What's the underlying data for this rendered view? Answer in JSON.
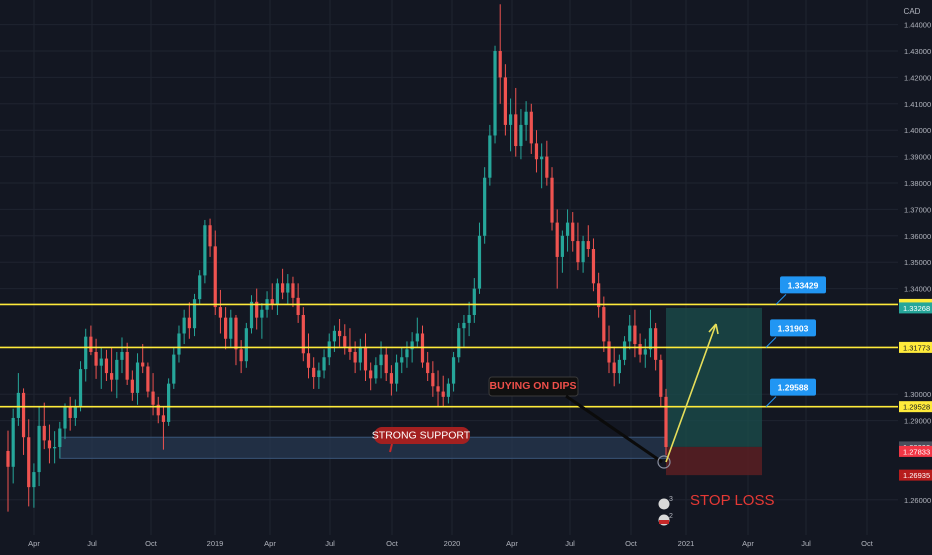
{
  "theme": {
    "background": "#131722",
    "grid": "#1f2430",
    "axis_text": "#b2b5be",
    "bull": "#26a69a",
    "bear": "#ef5350",
    "level_line": "#ffeb3b",
    "callout": "#2196f3",
    "target_zone": "#1a4b4a",
    "stop_zone": "#5a1e22",
    "support_zone": "#2a3c57",
    "arrow": "#e6de5a",
    "stop_text": "#e53935"
  },
  "chart_data": {
    "type": "candlestick",
    "instrument_quote_currency": "CAD",
    "x_tick_labels": [
      "Apr",
      "Jul",
      "Oct",
      "2019",
      "Apr",
      "Jul",
      "Oct",
      "2020",
      "Apr",
      "Jul",
      "Oct",
      "2021",
      "Apr",
      "Jul",
      "Oct"
    ],
    "y_tick_labels": [
      "1.44000",
      "1.43000",
      "1.42000",
      "1.41000",
      "1.40000",
      "1.39000",
      "1.38000",
      "1.37000",
      "1.36000",
      "1.35000",
      "1.34000",
      "1.30000",
      "1.29000",
      "1.26000"
    ],
    "ylim": [
      1.2545,
      1.4477
    ],
    "price_tags": [
      {
        "label": "1.33401",
        "value": 1.33401,
        "style": "yellow"
      },
      {
        "label": "1.33268",
        "value": 1.33268,
        "style": "green"
      },
      {
        "label": "1.31773",
        "value": 1.31773,
        "style": "yellow"
      },
      {
        "label": "1.29528",
        "value": 1.29528,
        "style": "yellow"
      },
      {
        "label": "1.28003",
        "value": 1.28003,
        "style": "grey"
      },
      {
        "label": "1.27833",
        "value": 1.27833,
        "style": "red"
      },
      {
        "label": "1.26935",
        "value": 1.26935,
        "style": "darkred"
      }
    ],
    "horizontal_levels": [
      1.33401,
      1.31773,
      1.29528
    ],
    "level_callouts": [
      "1.33429",
      "1.31903",
      "1.29588"
    ],
    "annotations": {
      "strong_support": "STRONG SUPPORT",
      "buying_on_dips": "BUYING ON DIPS",
      "stop_loss": "STOP LOSS",
      "marker_top": "3",
      "marker_bottom": "2"
    },
    "trade": {
      "entry": 1.28003,
      "target": 1.33268,
      "stop": 1.26935
    },
    "support_zone": [
      1.2757,
      1.2837
    ],
    "candles": [
      [
        1.2785,
        1.2862,
        1.2555,
        1.2725
      ],
      [
        1.2725,
        1.2945,
        1.2662,
        1.291
      ],
      [
        1.291,
        1.308,
        1.288,
        1.3005
      ],
      [
        1.3005,
        1.3022,
        1.277,
        1.2837
      ],
      [
        1.2837,
        1.2905,
        1.2575,
        1.2648
      ],
      [
        1.2648,
        1.2738,
        1.257,
        1.2705
      ],
      [
        1.2705,
        1.295,
        1.2652,
        1.288
      ],
      [
        1.288,
        1.2968,
        1.2792,
        1.2825
      ],
      [
        1.2825,
        1.2885,
        1.2738,
        1.2795
      ],
      [
        1.2795,
        1.286,
        1.2738,
        1.28
      ],
      [
        1.28,
        1.2895,
        1.2757,
        1.287
      ],
      [
        1.287,
        1.2965,
        1.283,
        1.295
      ],
      [
        1.295,
        1.299,
        1.2862,
        1.291
      ],
      [
        1.291,
        1.298,
        1.288,
        1.2955
      ],
      [
        1.2955,
        1.3125,
        1.2935,
        1.3095
      ],
      [
        1.3095,
        1.3248,
        1.3048,
        1.3218
      ],
      [
        1.3218,
        1.326,
        1.3148,
        1.316
      ],
      [
        1.316,
        1.321,
        1.3058,
        1.3108
      ],
      [
        1.3108,
        1.3178,
        1.302,
        1.3135
      ],
      [
        1.3135,
        1.3168,
        1.305,
        1.308
      ],
      [
        1.308,
        1.3175,
        1.301,
        1.3055
      ],
      [
        1.3055,
        1.316,
        1.2985,
        1.313
      ],
      [
        1.313,
        1.3215,
        1.308,
        1.316
      ],
      [
        1.316,
        1.3195,
        1.3035,
        1.3055
      ],
      [
        1.3055,
        1.309,
        1.2975,
        1.3005
      ],
      [
        1.3005,
        1.3155,
        1.296,
        1.312
      ],
      [
        1.312,
        1.319,
        1.308,
        1.3105
      ],
      [
        1.3105,
        1.312,
        1.2988,
        1.301
      ],
      [
        1.301,
        1.308,
        1.292,
        1.296
      ],
      [
        1.296,
        1.299,
        1.289,
        1.292
      ],
      [
        1.292,
        1.2955,
        1.279,
        1.2895
      ],
      [
        1.2895,
        1.306,
        1.288,
        1.304
      ],
      [
        1.304,
        1.3175,
        1.302,
        1.315
      ],
      [
        1.315,
        1.326,
        1.312,
        1.323
      ],
      [
        1.323,
        1.332,
        1.319,
        1.329
      ],
      [
        1.329,
        1.3348,
        1.321,
        1.325
      ],
      [
        1.325,
        1.338,
        1.322,
        1.336
      ],
      [
        1.336,
        1.347,
        1.334,
        1.345
      ],
      [
        1.345,
        1.366,
        1.342,
        1.364
      ],
      [
        1.364,
        1.3665,
        1.352,
        1.356
      ],
      [
        1.356,
        1.362,
        1.33,
        1.333
      ],
      [
        1.333,
        1.3395,
        1.323,
        1.329
      ],
      [
        1.329,
        1.333,
        1.317,
        1.321
      ],
      [
        1.321,
        1.332,
        1.318,
        1.329
      ],
      [
        1.329,
        1.33,
        1.311,
        1.317
      ],
      [
        1.317,
        1.3205,
        1.308,
        1.3125
      ],
      [
        1.3125,
        1.327,
        1.31,
        1.325
      ],
      [
        1.325,
        1.3375,
        1.323,
        1.335
      ],
      [
        1.335,
        1.34,
        1.3245,
        1.329
      ],
      [
        1.329,
        1.3345,
        1.321,
        1.332
      ],
      [
        1.332,
        1.339,
        1.329,
        1.336
      ],
      [
        1.336,
        1.342,
        1.332,
        1.334
      ],
      [
        1.334,
        1.3438,
        1.33,
        1.342
      ],
      [
        1.342,
        1.3475,
        1.336,
        1.3385
      ],
      [
        1.3385,
        1.3455,
        1.334,
        1.342
      ],
      [
        1.342,
        1.3445,
        1.333,
        1.3365
      ],
      [
        1.3365,
        1.342,
        1.327,
        1.33
      ],
      [
        1.33,
        1.333,
        1.3125,
        1.3155
      ],
      [
        1.3155,
        1.323,
        1.306,
        1.31
      ],
      [
        1.31,
        1.314,
        1.302,
        1.3065
      ],
      [
        1.3065,
        1.312,
        1.302,
        1.309
      ],
      [
        1.309,
        1.317,
        1.306,
        1.314
      ],
      [
        1.314,
        1.323,
        1.311,
        1.32
      ],
      [
        1.32,
        1.326,
        1.316,
        1.324
      ],
      [
        1.324,
        1.3285,
        1.318,
        1.322
      ],
      [
        1.322,
        1.3265,
        1.315,
        1.318
      ],
      [
        1.318,
        1.325,
        1.313,
        1.316
      ],
      [
        1.316,
        1.32,
        1.308,
        1.312
      ],
      [
        1.312,
        1.321,
        1.309,
        1.318
      ],
      [
        1.318,
        1.323,
        1.305,
        1.309
      ],
      [
        1.309,
        1.312,
        1.3015,
        1.306
      ],
      [
        1.306,
        1.314,
        1.304,
        1.311
      ],
      [
        1.311,
        1.32,
        1.306,
        1.315
      ],
      [
        1.315,
        1.318,
        1.305,
        1.308
      ],
      [
        1.308,
        1.311,
        1.2995,
        1.304
      ],
      [
        1.304,
        1.315,
        1.301,
        1.312
      ],
      [
        1.312,
        1.3175,
        1.308,
        1.314
      ],
      [
        1.314,
        1.32,
        1.31,
        1.317
      ],
      [
        1.317,
        1.3235,
        1.312,
        1.32
      ],
      [
        1.32,
        1.329,
        1.318,
        1.323
      ],
      [
        1.323,
        1.326,
        1.31,
        1.312
      ],
      [
        1.312,
        1.316,
        1.305,
        1.308
      ],
      [
        1.308,
        1.3125,
        1.299,
        1.303
      ],
      [
        1.303,
        1.309,
        1.295,
        1.301
      ],
      [
        1.301,
        1.307,
        1.295,
        1.299
      ],
      [
        1.299,
        1.306,
        1.2965,
        1.304
      ],
      [
        1.304,
        1.316,
        1.301,
        1.314
      ],
      [
        1.314,
        1.327,
        1.312,
        1.325
      ],
      [
        1.325,
        1.33,
        1.318,
        1.327
      ],
      [
        1.327,
        1.335,
        1.322,
        1.33
      ],
      [
        1.33,
        1.344,
        1.327,
        1.34
      ],
      [
        1.34,
        1.365,
        1.338,
        1.36
      ],
      [
        1.36,
        1.386,
        1.357,
        1.382
      ],
      [
        1.382,
        1.402,
        1.379,
        1.398
      ],
      [
        1.398,
        1.432,
        1.395,
        1.43
      ],
      [
        1.43,
        1.4477,
        1.41,
        1.42
      ],
      [
        1.42,
        1.425,
        1.398,
        1.402
      ],
      [
        1.402,
        1.412,
        1.392,
        1.406
      ],
      [
        1.406,
        1.416,
        1.39,
        1.394
      ],
      [
        1.394,
        1.408,
        1.389,
        1.402
      ],
      [
        1.402,
        1.411,
        1.396,
        1.407
      ],
      [
        1.407,
        1.41,
        1.391,
        1.395
      ],
      [
        1.395,
        1.4,
        1.384,
        1.389
      ],
      [
        1.389,
        1.395,
        1.378,
        1.39
      ],
      [
        1.39,
        1.396,
        1.379,
        1.382
      ],
      [
        1.382,
        1.386,
        1.362,
        1.365
      ],
      [
        1.365,
        1.37,
        1.34,
        1.352
      ],
      [
        1.352,
        1.362,
        1.346,
        1.36
      ],
      [
        1.36,
        1.37,
        1.354,
        1.365
      ],
      [
        1.365,
        1.369,
        1.354,
        1.358
      ],
      [
        1.358,
        1.365,
        1.347,
        1.35
      ],
      [
        1.35,
        1.36,
        1.346,
        1.358
      ],
      [
        1.358,
        1.364,
        1.352,
        1.355
      ],
      [
        1.355,
        1.359,
        1.339,
        1.342
      ],
      [
        1.342,
        1.346,
        1.329,
        1.333
      ],
      [
        1.333,
        1.337,
        1.316,
        1.32
      ],
      [
        1.32,
        1.326,
        1.308,
        1.312
      ],
      [
        1.312,
        1.318,
        1.303,
        1.308
      ],
      [
        1.308,
        1.315,
        1.304,
        1.313
      ],
      [
        1.313,
        1.322,
        1.311,
        1.32
      ],
      [
        1.32,
        1.33,
        1.317,
        1.326
      ],
      [
        1.326,
        1.332,
        1.314,
        1.319
      ],
      [
        1.319,
        1.323,
        1.312,
        1.315
      ],
      [
        1.315,
        1.321,
        1.31,
        1.317
      ],
      [
        1.317,
        1.332,
        1.314,
        1.325
      ],
      [
        1.325,
        1.327,
        1.309,
        1.313
      ],
      [
        1.313,
        1.315,
        1.295,
        1.299
      ],
      [
        1.299,
        1.302,
        1.277,
        1.28
      ]
    ]
  }
}
